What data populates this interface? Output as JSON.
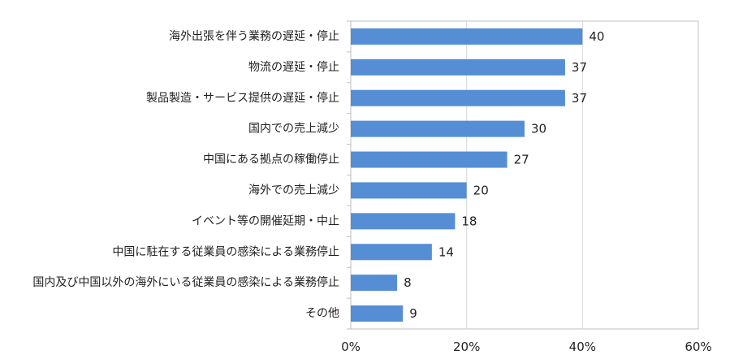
{
  "chart_data": {
    "type": "bar",
    "orientation": "horizontal",
    "categories": [
      "海外出張を伴う業務の遅延・停止",
      "物流の遅延・停止",
      "製品製造・サービス提供の遅延・停止",
      "国内での売上減少",
      "中国にある拠点の稼働停止",
      "海外での売上減少",
      "イベント等の開催延期・中止",
      "中国に駐在する従業員の感染による業務停止",
      "国内及び中国以外の海外にいる従業員の感染による業務停止",
      "その他"
    ],
    "values": [
      40,
      37,
      37,
      30,
      27,
      20,
      18,
      14,
      8,
      9
    ],
    "xlim": [
      0,
      60
    ],
    "ticks": [
      0,
      20,
      40,
      60
    ],
    "tick_labels": [
      "0%",
      "20%",
      "40%",
      "60%"
    ],
    "grid": "vertical",
    "legend": "none",
    "bar_color": "#558ed5",
    "grid_color": "#d9d9d9",
    "axis_color": "#bfbfbf"
  }
}
